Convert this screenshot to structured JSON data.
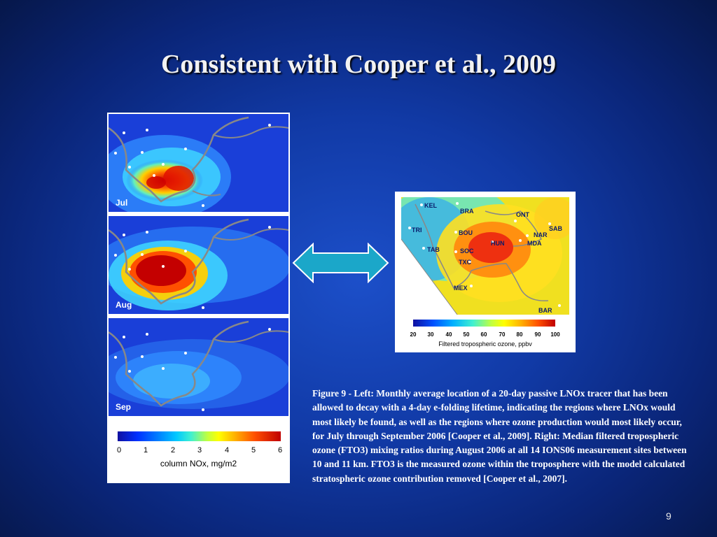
{
  "slide": {
    "title": "Consistent with Cooper et al., 2009",
    "page_number": "9"
  },
  "left_figure": {
    "panels": [
      {
        "label": "Jul"
      },
      {
        "label": "Aug"
      },
      {
        "label": "Sep"
      }
    ],
    "colorbar": {
      "ticks": [
        "0",
        "1",
        "2",
        "3",
        "4",
        "5",
        "6"
      ],
      "label": "column NOx, mg/m2"
    }
  },
  "right_figure": {
    "stations": [
      "KEL",
      "BRA",
      "ONT",
      "SAB",
      "TRI",
      "BOU",
      "NAR",
      "HUN",
      "MDA",
      "TAB",
      "SOC",
      "TXC",
      "MEX",
      "BAR"
    ],
    "colorbar": {
      "ticks": [
        "20",
        "30",
        "40",
        "50",
        "60",
        "70",
        "80",
        "90",
        "100"
      ],
      "label": "Filtered tropospheric ozone, ppbv"
    }
  },
  "caption": "Figure  9 - Left: Monthly average location of a 20-day passive LNOx tracer that has been allowed to decay with a 4-day e-folding lifetime, indicating the regions where LNOx would most likely be found, as well as the regions where ozone production would most likely occur, for July through September 2006 [Cooper et al., 2009]. Right: Median filtered tropospheric ozone (FTO3) mixing ratios during August 2006 at all 14 IONS06 measurement sites between 10 and 11 km. FTO3 is the measured ozone within the troposphere with the model calculated stratospheric ozone contribution removed [Cooper et al., 2007].",
  "colors": {
    "background": "#113aa6",
    "arrow_fill": "#1ba7c9",
    "title_text": "#f2f2f2"
  }
}
